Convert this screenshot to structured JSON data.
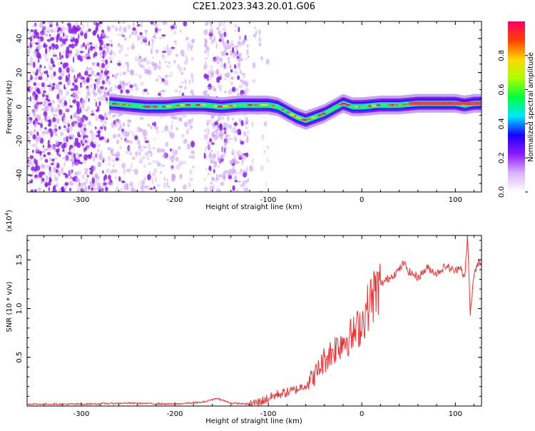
{
  "title": "C2E1.2023.343.20.01.G06",
  "chart_data": [
    {
      "type": "heatmap",
      "xlabel": "Height of straight line (km)",
      "ylabel": "Frequency (Hz)",
      "xlim": [
        -358,
        128
      ],
      "ylim": [
        -50,
        50
      ],
      "x_ticks": [
        -300,
        -200,
        -100,
        0,
        100
      ],
      "y_ticks": [
        -40,
        -20,
        0,
        20,
        40
      ],
      "colorbar": {
        "label": "Normalized spectral amplitude",
        "range": [
          0,
          1
        ],
        "ticks": [
          0.0,
          0.2,
          0.4,
          0.6,
          0.8
        ],
        "colors": [
          "#ffffff",
          "#d9b3ff",
          "#8c1aff",
          "#1a00ff",
          "#00e6ff",
          "#00ff40",
          "#aaff00",
          "#ffd700",
          "#ff4000",
          "#ff0066"
        ]
      },
      "track": {
        "x": [
          -270,
          -250,
          -230,
          -210,
          -190,
          -170,
          -150,
          -130,
          -110,
          -100,
          -90,
          -80,
          -70,
          -60,
          -50,
          -40,
          -30,
          -20,
          -10,
          0,
          20,
          40,
          60,
          80,
          100,
          110,
          120,
          128
        ],
        "y": [
          2,
          1,
          0,
          0,
          1,
          1,
          0,
          1,
          1,
          1,
          0,
          -3,
          -6,
          -8,
          -6,
          -4,
          -1,
          2,
          0,
          0,
          1,
          1,
          2,
          2,
          2,
          1,
          2,
          2
        ]
      }
    },
    {
      "type": "line",
      "xlabel": "Height of straight line (km)",
      "ylabel": "SNR (10 * v/v)",
      "y_multiplier": "(x10^4)",
      "xlim": [
        -358,
        128
      ],
      "ylim": [
        0,
        1.75
      ],
      "x_ticks": [
        -300,
        -200,
        -100,
        0,
        100
      ],
      "y_ticks": [
        0.5,
        1.0,
        1.5
      ],
      "series": [
        {
          "color": "#ee3333",
          "x": [
            -358,
            -300,
            -250,
            -200,
            -170,
            -155,
            -140,
            -120,
            -110,
            -100,
            -90,
            -80,
            -70,
            -60,
            -50,
            -40,
            -30,
            -20,
            -10,
            0,
            10,
            20,
            30,
            40,
            45,
            50,
            60,
            70,
            80,
            90,
            100,
            105,
            110,
            113,
            116,
            120,
            125,
            128
          ],
          "y": [
            0.02,
            0.02,
            0.03,
            0.02,
            0.04,
            0.08,
            0.03,
            0.02,
            0.04,
            0.08,
            0.12,
            0.14,
            0.17,
            0.22,
            0.32,
            0.48,
            0.58,
            0.68,
            0.72,
            0.85,
            1.1,
            1.25,
            1.32,
            1.4,
            1.47,
            1.38,
            1.32,
            1.42,
            1.36,
            1.44,
            1.38,
            1.45,
            1.3,
            1.75,
            0.95,
            1.35,
            1.48,
            1.42
          ]
        }
      ]
    }
  ]
}
